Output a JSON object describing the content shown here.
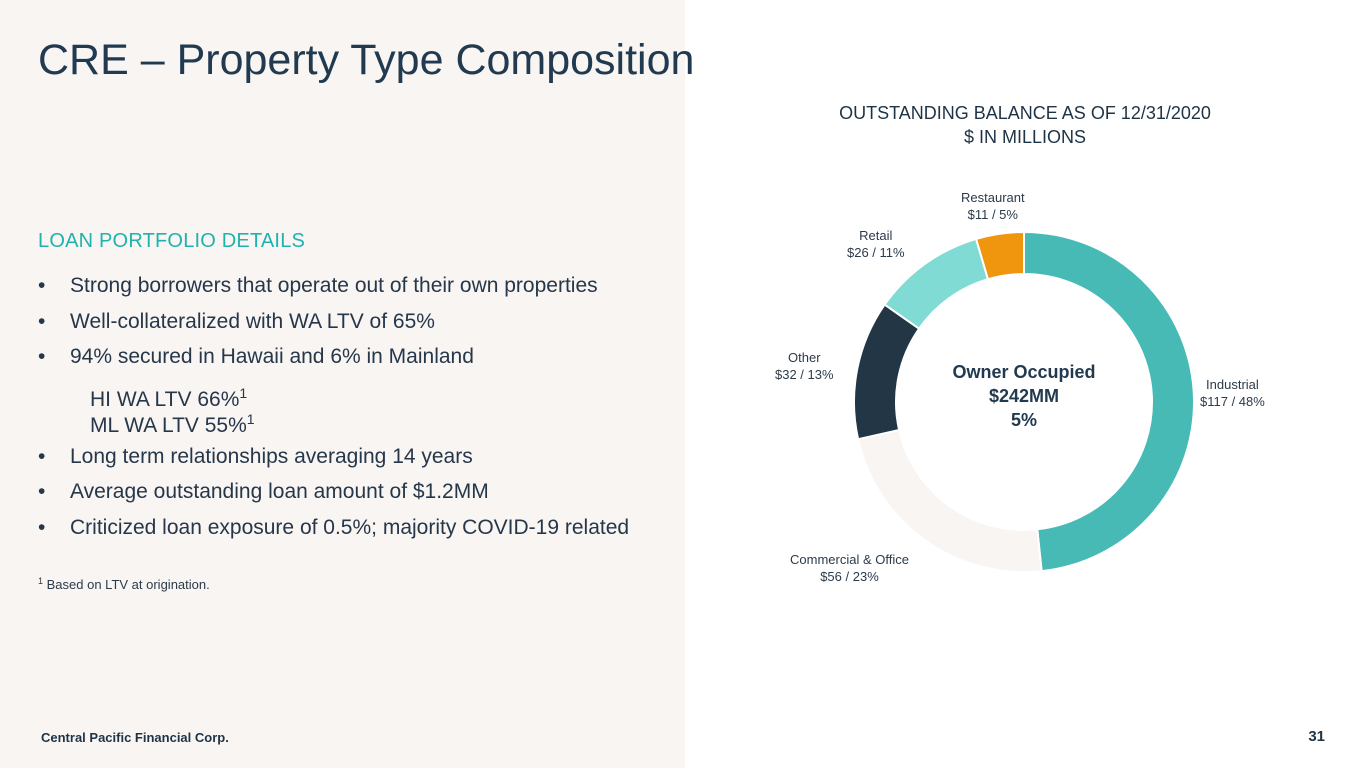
{
  "title": "CRE – Property Type Composition",
  "left": {
    "heading": "LOAN PORTFOLIO DETAILS",
    "bullet_symbol": "•",
    "bullets": [
      "Strong borrowers that operate out of their own properties",
      "Well-collateralized with WA LTV of 65%",
      "94% secured in Hawaii and 6% in Mainland"
    ],
    "sub_items": [
      {
        "text": "HI WA LTV 66%",
        "sup": "1"
      },
      {
        "text": "ML WA LTV 55%",
        "sup": "1"
      }
    ],
    "bullets_after": [
      "Long term relationships averaging 14 years",
      "Average outstanding loan amount of $1.2MM",
      "Criticized loan exposure of 0.5%; majority COVID-19 related"
    ],
    "footnote_mark": "1",
    "footnote": "Based on LTV at origination."
  },
  "footer": {
    "company": "Central Pacific Financial Corp.",
    "page_number": "31"
  },
  "chart_data": {
    "type": "pie",
    "title_line1": "OUTSTANDING BALANCE AS OF 12/31/2020",
    "title_line2": "$ IN MILLIONS",
    "center": {
      "line1": "Owner Occupied",
      "line2": "$242MM",
      "line3": "5%"
    },
    "slices": [
      {
        "name": "Industrial",
        "value": 117,
        "percent": 48,
        "label": "$117 / 48%",
        "color": "#47bab6"
      },
      {
        "name": "Commercial & Office",
        "value": 56,
        "percent": 23,
        "label": "$56 / 23%",
        "color": "#f8f5f2"
      },
      {
        "name": "Other",
        "value": 32,
        "percent": 13,
        "label": "$32 / 13%",
        "color": "#233646"
      },
      {
        "name": "Retail",
        "value": 26,
        "percent": 11,
        "label": "$26 / 11%",
        "color": "#81dbd5"
      },
      {
        "name": "Restaurant",
        "value": 11,
        "percent": 5,
        "label": "$11 / 5%",
        "color": "#f0960e"
      }
    ]
  }
}
